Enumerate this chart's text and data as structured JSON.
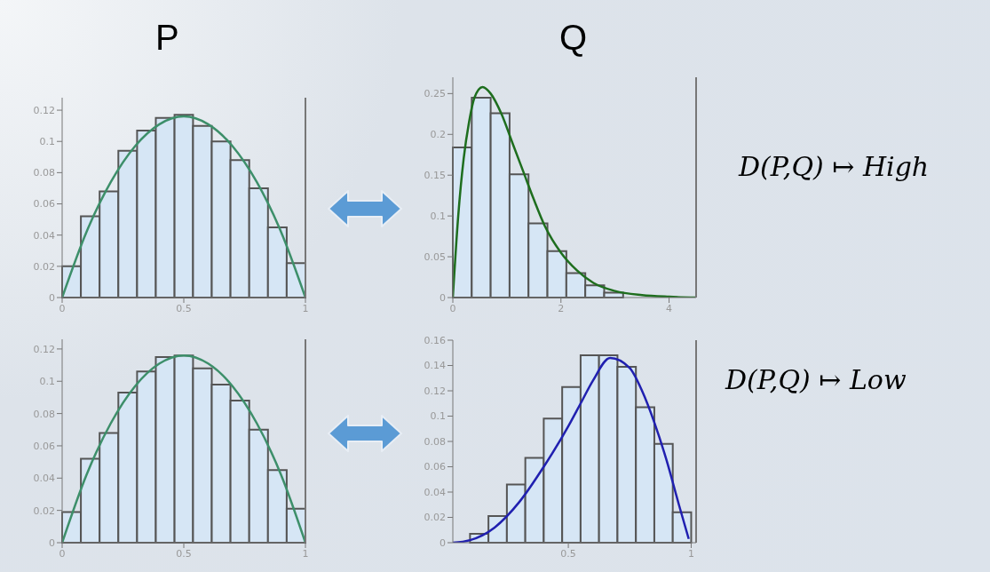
{
  "chart_data": [
    {
      "type": "histogram",
      "title": "P",
      "color": "#d6e6f5",
      "bins": [
        0,
        0.077,
        0.154,
        0.231,
        0.308,
        0.385,
        0.462,
        0.538,
        0.615,
        0.692,
        0.769,
        0.846,
        0.923,
        1
      ],
      "values": [
        0.02,
        0.052,
        0.068,
        0.094,
        0.107,
        0.115,
        0.117,
        0.11,
        0.1,
        0.088,
        0.07,
        0.045,
        0.022
      ],
      "series": [
        {
          "type": "line",
          "color": "#3d8f6a",
          "x": [
            0,
            0.1,
            0.2,
            0.3,
            0.4,
            0.5,
            0.6,
            0.7,
            0.8,
            0.9,
            1
          ],
          "values": [
            0,
            0.042,
            0.074,
            0.097,
            0.111,
            0.116,
            0.111,
            0.097,
            0.074,
            0.042,
            0
          ]
        }
      ],
      "xlim": [
        0,
        1
      ],
      "xticks": [
        0,
        0.5,
        1
      ],
      "ylim": [
        0,
        0.128
      ],
      "yticks": [
        0,
        0.02,
        0.04,
        0.06,
        0.08,
        0.1,
        0.12
      ]
    },
    {
      "type": "histogram",
      "title": "Q",
      "color": "#d6e6f5",
      "bins": [
        0,
        0.35,
        0.7,
        1.05,
        1.4,
        1.75,
        2.1,
        2.45,
        2.8,
        3.15
      ],
      "values": [
        0.184,
        0.245,
        0.226,
        0.151,
        0.091,
        0.057,
        0.03,
        0.015,
        0.006
      ],
      "series": [
        {
          "type": "line",
          "color": "#1e6e1e",
          "x": [
            0,
            0.1,
            0.2,
            0.3,
            0.4,
            0.55,
            0.7,
            0.9,
            1.1,
            1.3,
            1.5,
            1.7,
            2,
            2.3,
            2.6,
            3,
            3.5,
            4,
            4.5
          ],
          "values": [
            0,
            0.1,
            0.17,
            0.215,
            0.245,
            0.258,
            0.25,
            0.225,
            0.19,
            0.155,
            0.12,
            0.088,
            0.055,
            0.033,
            0.018,
            0.008,
            0.003,
            0.001,
            0
          ]
        }
      ],
      "xlim": [
        0,
        4.5
      ],
      "xticks": [
        0,
        2,
        4
      ],
      "ylim": [
        0,
        0.27
      ],
      "yticks": [
        0,
        0.05,
        0.1,
        0.15,
        0.2,
        0.25
      ],
      "annotations": [
        "D(P,Q) ↦ High"
      ]
    },
    {
      "type": "histogram",
      "color": "#d6e6f5",
      "bins": [
        0,
        0.077,
        0.154,
        0.231,
        0.308,
        0.385,
        0.462,
        0.538,
        0.615,
        0.692,
        0.769,
        0.846,
        0.923,
        1
      ],
      "values": [
        0.019,
        0.052,
        0.068,
        0.093,
        0.106,
        0.115,
        0.116,
        0.108,
        0.098,
        0.088,
        0.07,
        0.045,
        0.021
      ],
      "series": [
        {
          "type": "line",
          "color": "#3d8f6a",
          "x": [
            0,
            0.1,
            0.2,
            0.3,
            0.4,
            0.5,
            0.6,
            0.7,
            0.8,
            0.9,
            1
          ],
          "values": [
            0,
            0.042,
            0.074,
            0.097,
            0.111,
            0.116,
            0.111,
            0.097,
            0.074,
            0.042,
            0
          ]
        }
      ],
      "xlim": [
        0,
        1
      ],
      "xticks": [
        0,
        0.5,
        1
      ],
      "ylim": [
        0,
        0.126
      ],
      "yticks": [
        0,
        0.02,
        0.04,
        0.06,
        0.08,
        0.1,
        0.12
      ]
    },
    {
      "type": "histogram",
      "color": "#d6e6f5",
      "bins": [
        0.1,
        0.175,
        0.25,
        0.325,
        0.4,
        0.475,
        0.55,
        0.625,
        0.7,
        0.775,
        0.85,
        0.925,
        1
      ],
      "values": [
        0.007,
        0.021,
        0.046,
        0.067,
        0.098,
        0.123,
        0.148,
        0.148,
        0.139,
        0.107,
        0.078,
        0.024
      ],
      "series": [
        {
          "type": "line",
          "color": "#2020b0",
          "x": [
            0.03,
            0.1,
            0.2,
            0.3,
            0.4,
            0.5,
            0.55,
            0.6,
            0.67,
            0.75,
            0.8,
            0.85,
            0.9,
            0.95,
            0.99
          ],
          "values": [
            0,
            0.002,
            0.012,
            0.032,
            0.06,
            0.092,
            0.11,
            0.128,
            0.146,
            0.138,
            0.12,
            0.095,
            0.065,
            0.03,
            0.003
          ]
        }
      ],
      "xlim": [
        0.03,
        1.02
      ],
      "xticks": [
        0.5,
        1
      ],
      "ylim": [
        0,
        0.16
      ],
      "yticks": [
        0,
        0.02,
        0.04,
        0.06,
        0.08,
        0.1,
        0.12,
        0.14,
        0.16
      ],
      "annotations": [
        "D(P,Q) ↦ Low"
      ]
    }
  ]
}
